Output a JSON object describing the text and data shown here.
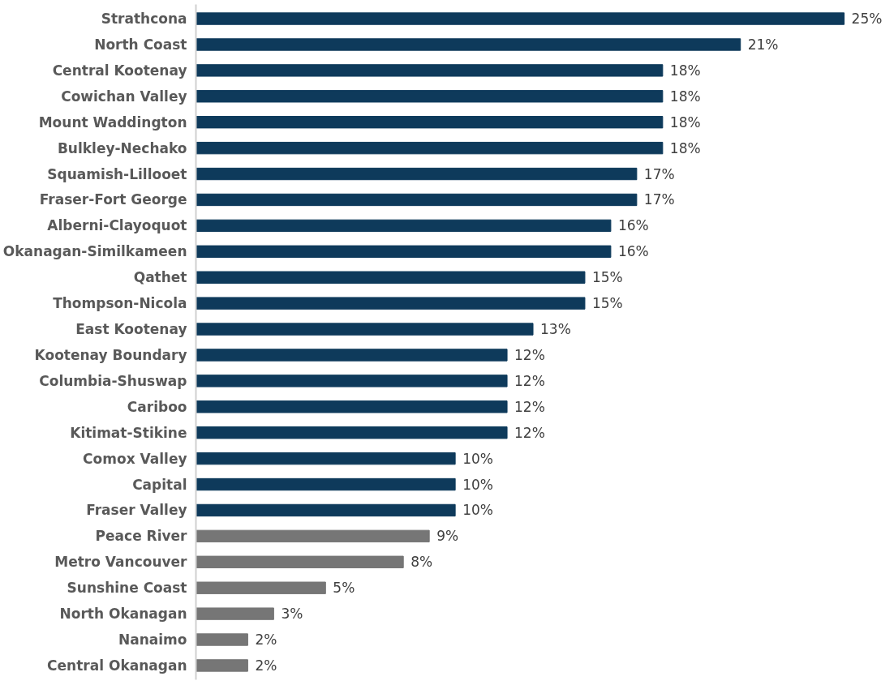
{
  "chart_data": {
    "type": "bar",
    "orientation": "horizontal",
    "categories": [
      "Strathcona",
      "North Coast",
      "Central Kootenay",
      "Cowichan Valley",
      "Mount Waddington",
      "Bulkley-Nechako",
      "Squamish-Lillooet",
      "Fraser-Fort George",
      "Alberni-Clayoquot",
      "Okanagan-Similkameen",
      "Qathet",
      "Thompson-Nicola",
      "East Kootenay",
      "Kootenay Boundary",
      "Columbia-Shuswap",
      "Cariboo",
      "Kitimat-Stikine",
      "Comox Valley",
      "Capital",
      "Fraser Valley",
      "Peace River",
      "Metro Vancouver",
      "Sunshine Coast",
      "North Okanagan",
      "Nanaimo",
      "Central Okanagan"
    ],
    "values": [
      25,
      21,
      18,
      18,
      18,
      18,
      17,
      17,
      16,
      16,
      15,
      15,
      13,
      12,
      12,
      12,
      12,
      10,
      10,
      10,
      9,
      8,
      5,
      3,
      2,
      2
    ],
    "value_labels": [
      "25%",
      "21%",
      "18%",
      "18%",
      "18%",
      "18%",
      "17%",
      "17%",
      "16%",
      "16%",
      "15%",
      "15%",
      "13%",
      "12%",
      "12%",
      "12%",
      "12%",
      "10%",
      "10%",
      "10%",
      "9%",
      "8%",
      "5%",
      "3%",
      "2%",
      "2%"
    ],
    "colors": [
      "#0e3a5b",
      "#0e3a5b",
      "#0e3a5b",
      "#0e3a5b",
      "#0e3a5b",
      "#0e3a5b",
      "#0e3a5b",
      "#0e3a5b",
      "#0e3a5b",
      "#0e3a5b",
      "#0e3a5b",
      "#0e3a5b",
      "#0e3a5b",
      "#0e3a5b",
      "#0e3a5b",
      "#0e3a5b",
      "#0e3a5b",
      "#0e3a5b",
      "#0e3a5b",
      "#0e3a5b",
      "#767676",
      "#767676",
      "#767676",
      "#767676",
      "#767676",
      "#767676"
    ],
    "tick_labels": "y",
    "grid": false
  }
}
